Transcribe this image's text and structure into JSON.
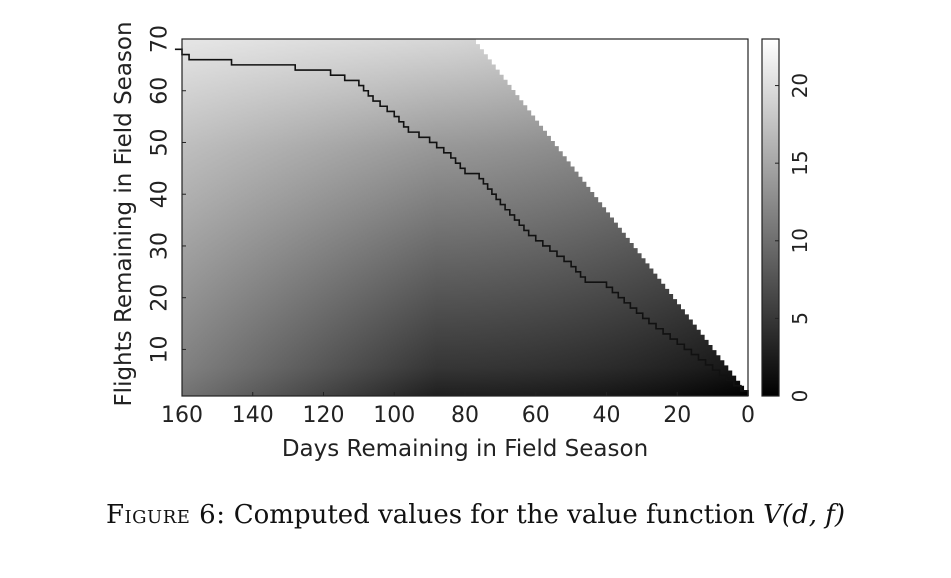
{
  "chart_data": {
    "type": "heatmap",
    "xlabel": "Days Remaining in Field Season",
    "ylabel": "Flights Remaining in Field Season",
    "xlim": [
      160,
      0
    ],
    "ylim": [
      1,
      70
    ],
    "x_ticks": [
      160,
      140,
      120,
      100,
      80,
      60,
      40,
      20,
      0
    ],
    "y_ticks": [
      10,
      20,
      30,
      40,
      50,
      60,
      70
    ],
    "colorbar": {
      "range": [
        0,
        23
      ],
      "ticks": [
        0,
        5,
        10,
        15,
        20
      ],
      "colormap": "grayscale",
      "low_color": "#000000",
      "high_color": "#ffffff"
    },
    "undefined_region_color": "#ffffff",
    "boundary_line": {
      "description_points": [
        {
          "d": 162,
          "f": 68
        },
        {
          "d": 160,
          "f": 67
        },
        {
          "d": 158,
          "f": 66
        },
        {
          "d": 146,
          "f": 65
        },
        {
          "d": 128,
          "f": 64
        },
        {
          "d": 118,
          "f": 63
        },
        {
          "d": 110,
          "f": 61
        },
        {
          "d": 106,
          "f": 58
        },
        {
          "d": 100,
          "f": 55
        },
        {
          "d": 96,
          "f": 52
        },
        {
          "d": 90,
          "f": 50
        },
        {
          "d": 84,
          "f": 47
        },
        {
          "d": 80,
          "f": 44
        },
        {
          "d": 76,
          "f": 43
        },
        {
          "d": 70,
          "f": 38
        },
        {
          "d": 62,
          "f": 32
        },
        {
          "d": 56,
          "f": 29
        },
        {
          "d": 50,
          "f": 26
        },
        {
          "d": 46,
          "f": 23
        },
        {
          "d": 40,
          "f": 22
        },
        {
          "d": 35,
          "f": 19
        },
        {
          "d": 28,
          "f": 15
        },
        {
          "d": 20,
          "f": 11
        },
        {
          "d": 12,
          "f": 7
        },
        {
          "d": 6,
          "f": 4
        },
        {
          "d": 0,
          "f": 1
        }
      ],
      "color": "#111111"
    },
    "diagonal_edge": [
      {
        "d": 78,
        "f": 70
      },
      {
        "d": 0,
        "f": 1
      }
    ]
  },
  "caption": {
    "label": "Figure 6:",
    "text": "Computed values for the value function",
    "math": "V(d, f)"
  }
}
